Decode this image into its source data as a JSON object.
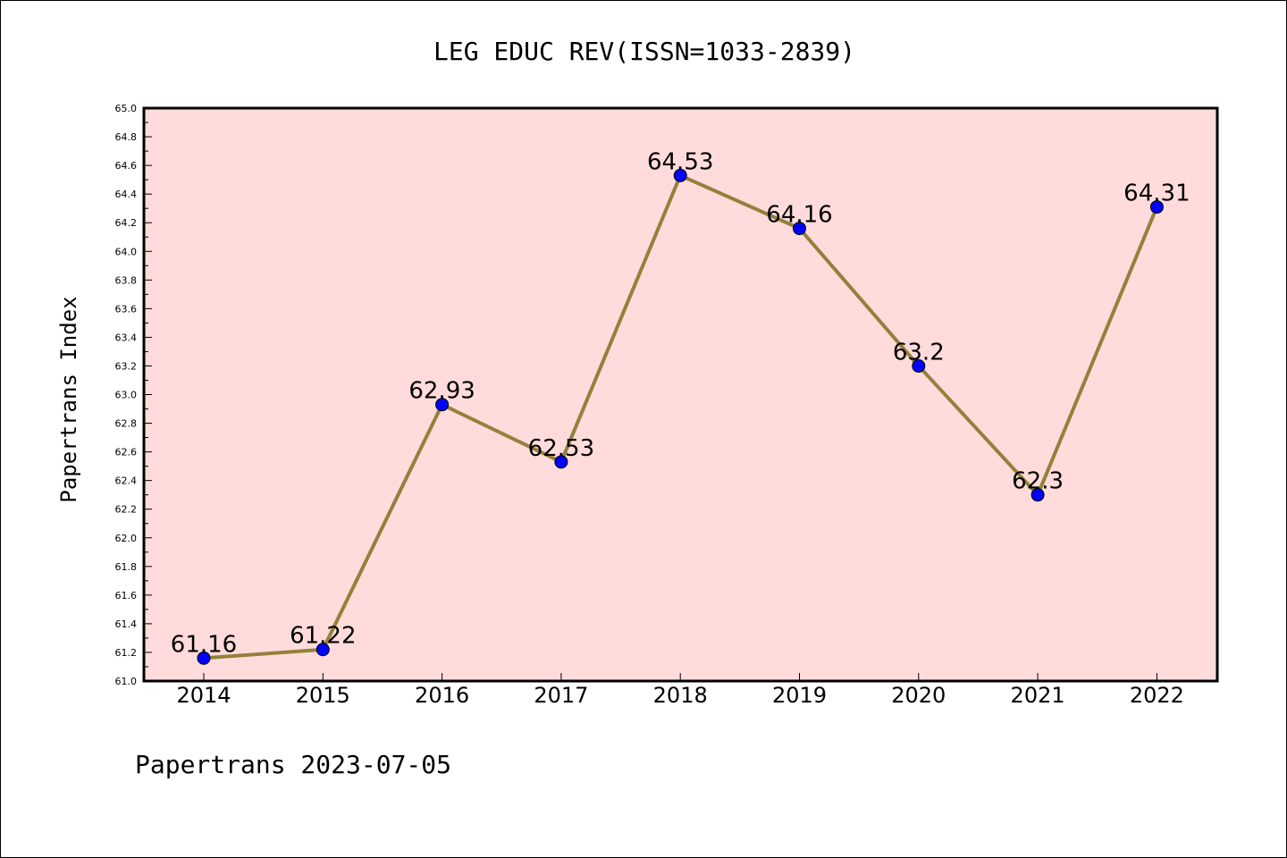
{
  "chart_data": {
    "type": "line",
    "title": "LEG EDUC REV(ISSN=1033-2839)",
    "ylabel": "Papertrans Index",
    "xlabel": "",
    "x": [
      "2014",
      "2015",
      "2016",
      "2017",
      "2018",
      "2019",
      "2020",
      "2021",
      "2022"
    ],
    "series": [
      {
        "values": [
          61.16,
          61.22,
          62.93,
          62.53,
          64.53,
          64.16,
          63.2,
          62.3,
          64.31
        ],
        "data_labels": [
          "61.16",
          "61.22",
          "62.93",
          "62.53",
          "64.53",
          "64.16",
          "63.2",
          "62.3",
          "64.31"
        ]
      }
    ],
    "ylim": [
      61.0,
      65.0
    ],
    "yticks": [
      "61.0",
      "61.2",
      "61.4",
      "61.6",
      "61.8",
      "62.0",
      "62.2",
      "62.4",
      "62.6",
      "62.8",
      "63.0",
      "63.2",
      "63.4",
      "63.6",
      "63.8",
      "64.0",
      "64.2",
      "64.4",
      "64.6",
      "64.8",
      "65.0"
    ],
    "grid": false,
    "legend": "none",
    "colors": {
      "plot_background": "#ffdcdb",
      "line": "#94803c",
      "marker": "#0000ff"
    },
    "footer": "Papertrans 2023-07-05"
  }
}
